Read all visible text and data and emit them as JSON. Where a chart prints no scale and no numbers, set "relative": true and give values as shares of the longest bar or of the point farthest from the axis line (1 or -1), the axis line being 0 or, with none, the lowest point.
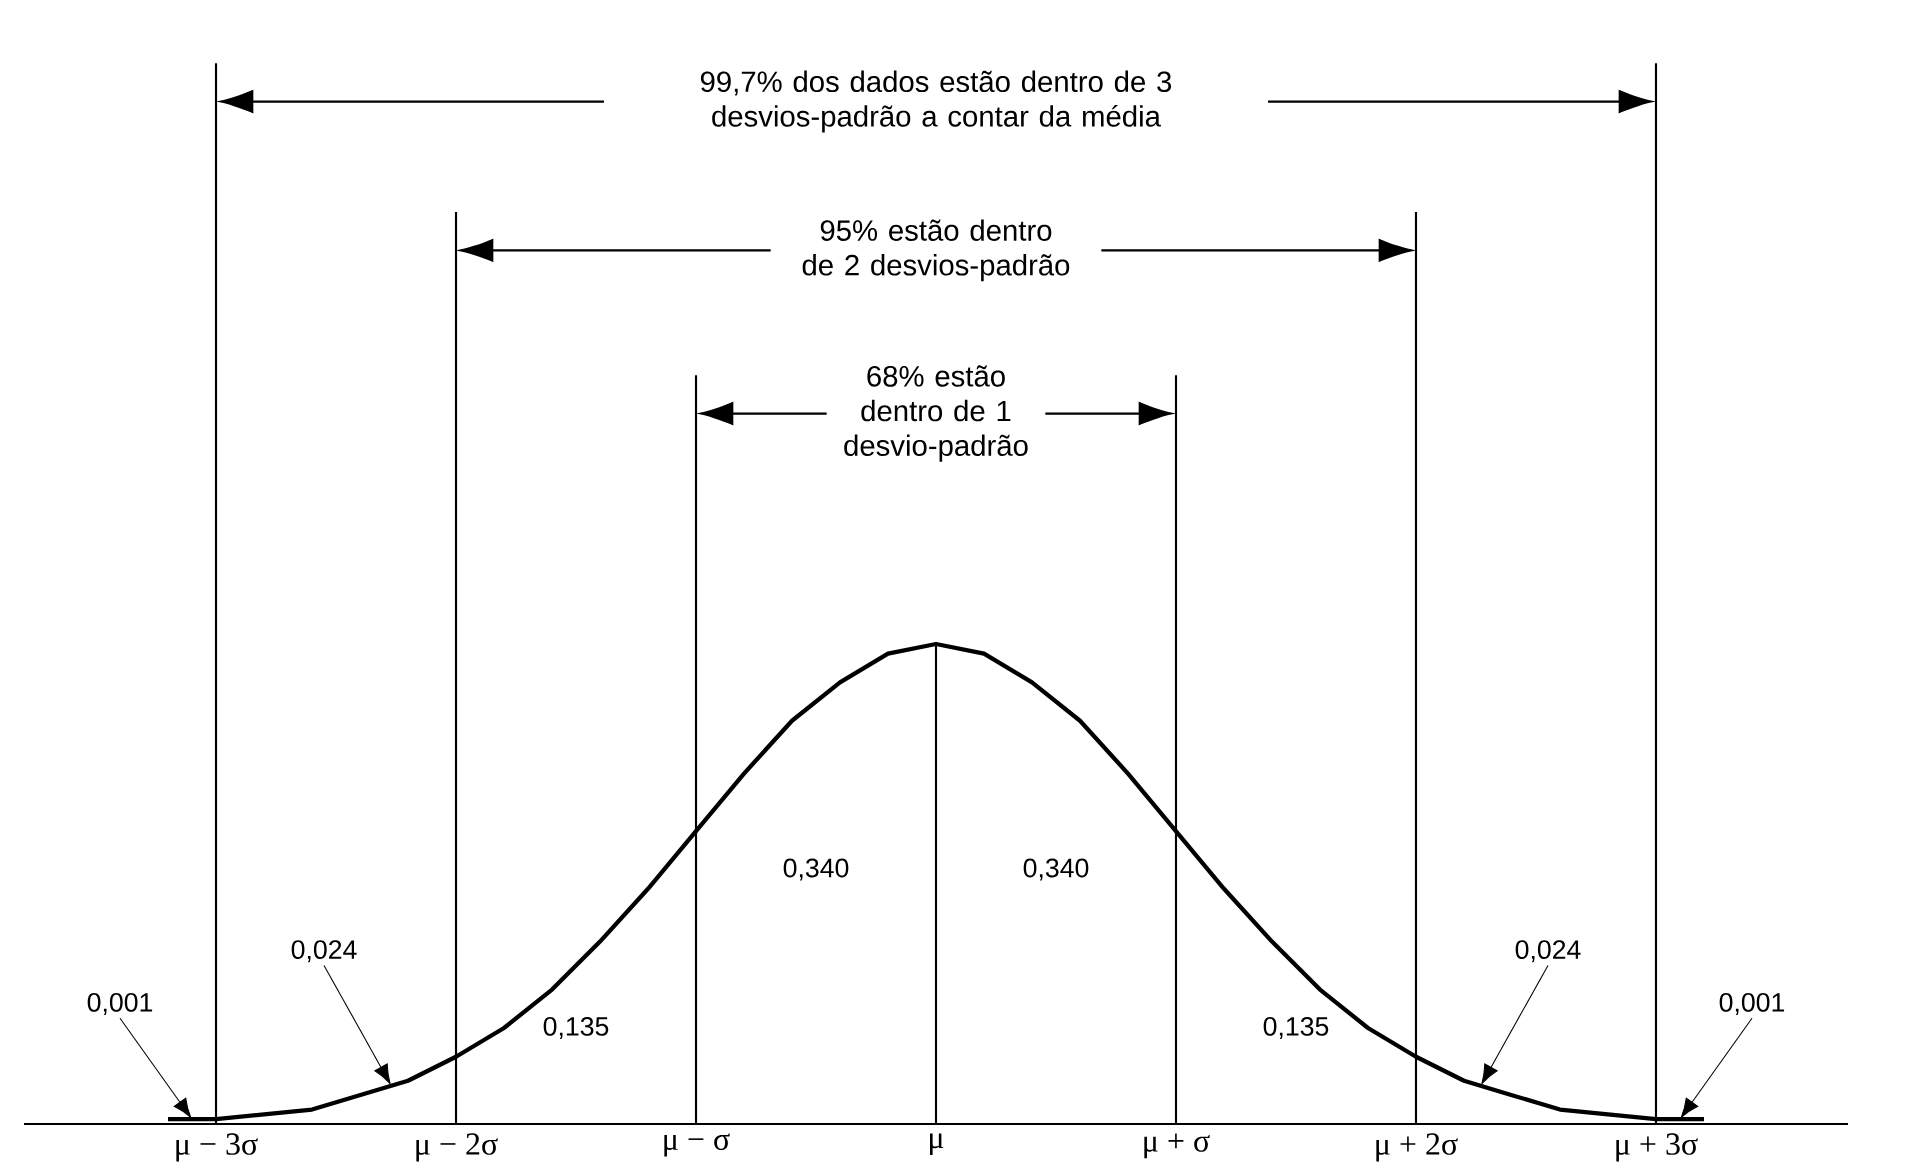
{
  "chart_data": {
    "type": "line",
    "relative": true,
    "color": "#000000",
    "x": [
      -3.2,
      -3.0,
      -2.8,
      -2.6,
      -2.4,
      -2.2,
      -2.0,
      -1.8,
      -1.6,
      -1.4,
      -1.2,
      -1.0,
      -0.8,
      -0.6,
      -0.4,
      -0.2,
      0,
      0.2,
      0.4,
      0.6,
      0.8,
      1.0,
      1.2,
      1.4,
      1.6,
      1.8,
      2.0,
      2.2,
      2.4,
      2.6,
      2.8,
      3.0,
      3.2
    ],
    "values": [
      0.01,
      0.01,
      0.02,
      0.03,
      0.06,
      0.09,
      0.14,
      0.2,
      0.28,
      0.38,
      0.49,
      0.61,
      0.73,
      0.84,
      0.92,
      0.98,
      1,
      0.98,
      0.92,
      0.84,
      0.73,
      0.61,
      0.49,
      0.38,
      0.28,
      0.2,
      0.14,
      0.09,
      0.06,
      0.03,
      0.02,
      0.01,
      0.01
    ],
    "xlim": [
      -3.8,
      3.8
    ],
    "xticks": [
      {
        "value": -3,
        "label": "μ − 3σ"
      },
      {
        "value": -2,
        "label": "μ − 2σ"
      },
      {
        "value": -1,
        "label": "μ − σ"
      },
      {
        "value": 0,
        "label": "μ"
      },
      {
        "value": 1,
        "label": "μ + σ"
      },
      {
        "value": 2,
        "label": "μ + 2σ"
      },
      {
        "value": 3,
        "label": "μ + 3σ"
      }
    ],
    "ref_lines": [
      {
        "axis": "x",
        "value": -3
      },
      {
        "axis": "x",
        "value": -2
      },
      {
        "axis": "x",
        "value": -1
      },
      {
        "axis": "x",
        "value": 0
      },
      {
        "axis": "x",
        "value": 1
      },
      {
        "axis": "x",
        "value": 2
      },
      {
        "axis": "x",
        "value": 3
      }
    ],
    "annotations": [
      "99,7% dos dados estão dentro de 3 desvios-padrão a contar da média",
      "95% estão dentro de 2 desvios-padrão",
      "68% estão dentro de 1 desvio-padrão",
      "0,340",
      "0,340",
      "0,135",
      "0,135",
      "0,024",
      "0,024",
      "0,001",
      "0,001"
    ]
  }
}
